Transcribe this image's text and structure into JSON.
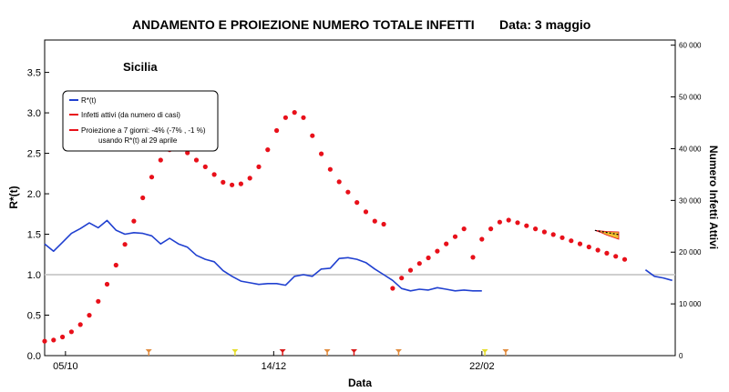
{
  "chart_data": {
    "type": "line",
    "title": "ANDAMENTO E PROIEZIONE NUMERO TOTALE INFETTI",
    "date_label": "Data: 3 maggio",
    "region": "Sicilia",
    "xlabel": "Data",
    "ylabel_left": "R*(t)",
    "ylabel_right": "Numero Infetti Attivi",
    "x_tick_labels": [
      "05/10",
      "14/12",
      "22/02"
    ],
    "x_tick_days": [
      7,
      77,
      147
    ],
    "xlim_days": [
      0,
      212
    ],
    "y_left_lim": [
      0,
      3.9
    ],
    "y_left_ticks": [
      "0.0",
      "0.5",
      "1.0",
      "1.5",
      "2.0",
      "2.5",
      "3.0",
      "3.5"
    ],
    "y_right_lim": [
      0,
      61000
    ],
    "y_right_ticks": [
      "0",
      "10 000",
      "20 000",
      "30 000",
      "40 000",
      "50 000",
      "60 000"
    ],
    "reference_line_value": 1.0,
    "colors": {
      "rt_line": "#2040d0",
      "infected_points": "#e8101a",
      "projection": "#e8101a",
      "reference": "#c8c8c8",
      "markers_orange": "#e08a3c",
      "markers_yellow": "#e4dc28",
      "markers_red": "#d81818"
    },
    "legend": [
      {
        "label": "R*(t)",
        "color": "#2040d0"
      },
      {
        "label": "Infetti attivi (da numero di casi)",
        "color": "#e8101a"
      },
      {
        "label": "Proiezione a 7 giorni: -4% (-7% , -1 %)",
        "label2": "usando R*(t) al 29 aprile",
        "color": "#e8101a"
      }
    ],
    "series": [
      {
        "name": "R*(t)",
        "axis": "left",
        "x_days": [
          0,
          3,
          6,
          9,
          12,
          15,
          18,
          21,
          24,
          27,
          30,
          33,
          36,
          39,
          42,
          45,
          48,
          51,
          54,
          57,
          60,
          63,
          66,
          69,
          72,
          75,
          78,
          81,
          84,
          87,
          90,
          93,
          96,
          99,
          102,
          105,
          108,
          111,
          114,
          117,
          120,
          123,
          126,
          129,
          132,
          135,
          138,
          141,
          144,
          147
        ],
        "values": [
          1.38,
          1.29,
          1.4,
          1.51,
          1.57,
          1.64,
          1.58,
          1.67,
          1.55,
          1.5,
          1.52,
          1.51,
          1.48,
          1.38,
          1.45,
          1.38,
          1.34,
          1.24,
          1.19,
          1.16,
          1.05,
          0.98,
          0.92,
          0.9,
          0.88,
          0.89,
          0.89,
          0.87,
          0.98,
          1.0,
          0.98,
          1.07,
          1.08,
          1.2,
          1.21,
          1.19,
          1.15,
          1.07,
          1.0,
          0.93,
          0.83,
          0.8,
          0.82,
          0.81,
          0.84,
          0.82,
          0.8,
          0.81,
          0.8,
          0.8
        ]
      },
      {
        "name": "R*(t)",
        "axis": "left",
        "x_days": [
          202,
          205,
          208,
          211
        ],
        "values": [
          1.06,
          0.98,
          0.96,
          0.93
        ]
      },
      {
        "name": "Infetti attivi (da numero di casi)",
        "axis": "right",
        "x_days": [
          0,
          3,
          6,
          9,
          12,
          15,
          18,
          21,
          24,
          27,
          30,
          33,
          36,
          39,
          42,
          45,
          48,
          51,
          54,
          57,
          60,
          63,
          66,
          69,
          72,
          75,
          78,
          81,
          84,
          87,
          90,
          93,
          96,
          99,
          102,
          105,
          108,
          111,
          114,
          117,
          120,
          123,
          126,
          129,
          132,
          135,
          138,
          141,
          144,
          147,
          150,
          153,
          156,
          159,
          162,
          165,
          168,
          171,
          174,
          177,
          180,
          183,
          186,
          189,
          192,
          195
        ],
        "values": [
          2800,
          3000,
          3600,
          4600,
          6000,
          7800,
          10500,
          13800,
          17500,
          21500,
          26000,
          30500,
          34500,
          37800,
          39800,
          40000,
          39200,
          37800,
          36500,
          35000,
          33500,
          33000,
          33200,
          34300,
          36500,
          39800,
          43500,
          46000,
          47000,
          46000,
          42500,
          39000,
          36000,
          33600,
          31600,
          29600,
          27800,
          26000,
          25400,
          13000,
          15000,
          16500,
          17800,
          18900,
          20200,
          21600,
          23000,
          24500,
          19000,
          22500,
          24500,
          25800,
          26200,
          25700,
          25100,
          24500,
          23900,
          23400,
          22800,
          22200,
          21600,
          21000,
          20400,
          19800,
          19200,
          18600
        ]
      }
    ],
    "projection": {
      "x_days": [
        185,
        187,
        189,
        191,
        193
      ],
      "central": [
        24200,
        24000,
        23800,
        23600,
        23400
      ],
      "low": [
        24200,
        23800,
        23300,
        22900,
        22500
      ],
      "high": [
        24200,
        24100,
        24000,
        23950,
        23900
      ]
    },
    "event_markers": [
      {
        "day": 35,
        "color": "orange"
      },
      {
        "day": 64,
        "color": "yellow"
      },
      {
        "day": 80,
        "color": "red"
      },
      {
        "day": 95,
        "color": "orange"
      },
      {
        "day": 104,
        "color": "red"
      },
      {
        "day": 119,
        "color": "orange"
      },
      {
        "day": 148,
        "color": "yellow"
      },
      {
        "day": 155,
        "color": "orange"
      }
    ]
  }
}
